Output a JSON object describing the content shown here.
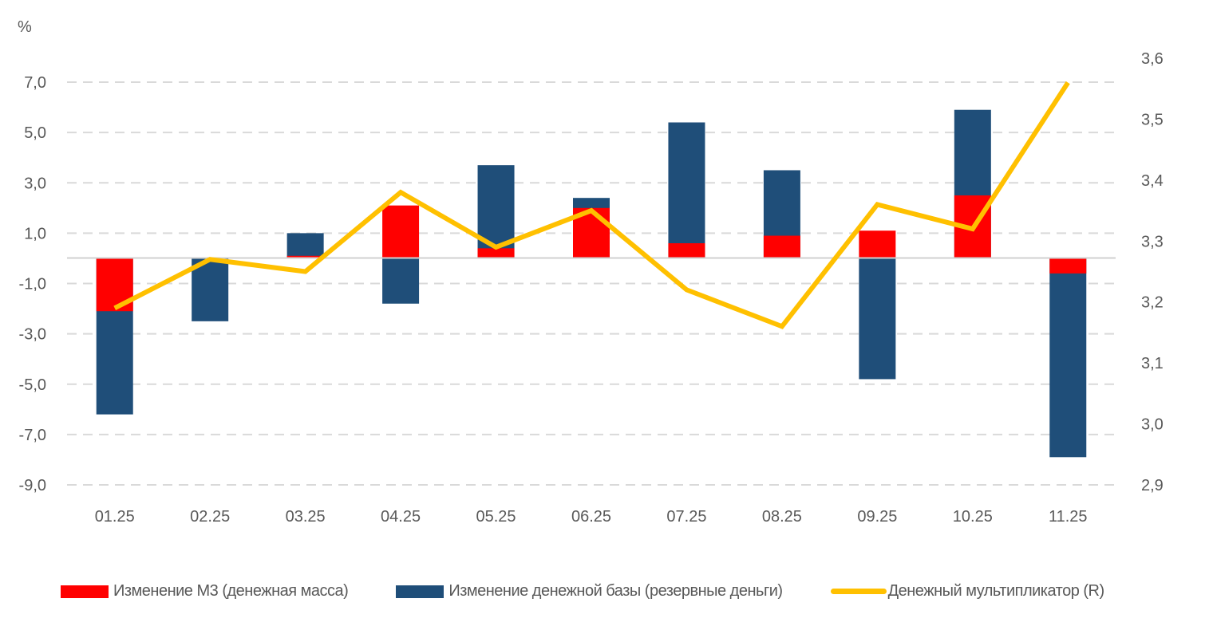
{
  "chart_data": {
    "type": "bar",
    "unit_label": "%",
    "categories": [
      "01.25",
      "02.25",
      "03.25",
      "04.25",
      "05.25",
      "06.25",
      "07.25",
      "08.25",
      "09.25",
      "10.25",
      "11.25"
    ],
    "series": [
      {
        "name": "Изменение М3 (денежная масса)",
        "type": "bar",
        "axis": "left",
        "color": "#ff0000",
        "values": [
          -2.1,
          0.0,
          0.1,
          2.1,
          0.4,
          2.0,
          0.6,
          0.9,
          1.1,
          2.5,
          -0.6
        ]
      },
      {
        "name": "Изменение денежной базы (резервные деньги)",
        "type": "bar",
        "axis": "left",
        "color": "#1f4e79",
        "values": [
          -6.2,
          -2.5,
          1.0,
          -1.8,
          3.7,
          2.4,
          5.4,
          3.5,
          -4.8,
          5.9,
          -7.9
        ]
      },
      {
        "name": "Денежный мультипликатор (R)",
        "type": "line",
        "axis": "right",
        "color": "#ffc000",
        "values": [
          3.19,
          3.27,
          3.25,
          3.38,
          3.29,
          3.35,
          3.22,
          3.16,
          3.36,
          3.32,
          3.56
        ]
      }
    ],
    "y_left": {
      "min": -9,
      "max": 7,
      "ticks": [
        "7,0",
        "5,0",
        "3,0",
        "1,0",
        "-1,0",
        "-3,0",
        "-5,0",
        "-7,0",
        "-9,0"
      ],
      "tick_values": [
        7,
        5,
        3,
        1,
        -1,
        -3,
        -5,
        -7,
        -9
      ]
    },
    "y_right": {
      "min": 2.9,
      "max": 3.6,
      "ticks": [
        "3,6",
        "3,5",
        "3,4",
        "3,3",
        "3,2",
        "3,1",
        "3,0",
        "2,9"
      ],
      "tick_values": [
        3.6,
        3.5,
        3.4,
        3.3,
        3.2,
        3.1,
        3.0,
        2.9
      ]
    },
    "grid": true,
    "legend_position": "bottom"
  }
}
